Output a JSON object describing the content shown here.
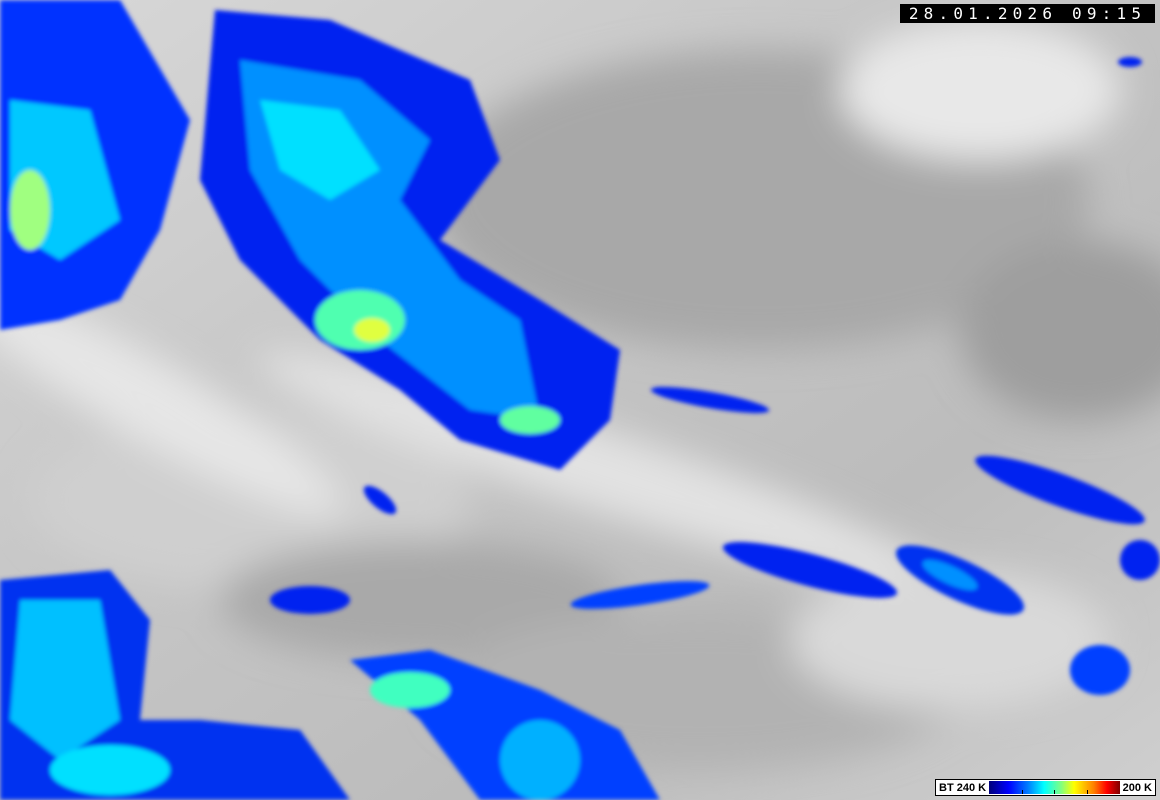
{
  "overlay": {
    "timestamp": "28.01.2026 09:15"
  },
  "legend": {
    "label_min": "BT 240 K",
    "label_max": "200 K",
    "colors": [
      "#00007a",
      "#0000ff",
      "#0080ff",
      "#00ffff",
      "#80ff80",
      "#ffff00",
      "#ff8000",
      "#ff0000",
      "#800000"
    ]
  },
  "image": {
    "cloud_gray": "#bdbdbd",
    "cold_cloud_colors": [
      "#0000e0",
      "#0040ff",
      "#00c0ff",
      "#40ffc0",
      "#e0ff40"
    ]
  }
}
